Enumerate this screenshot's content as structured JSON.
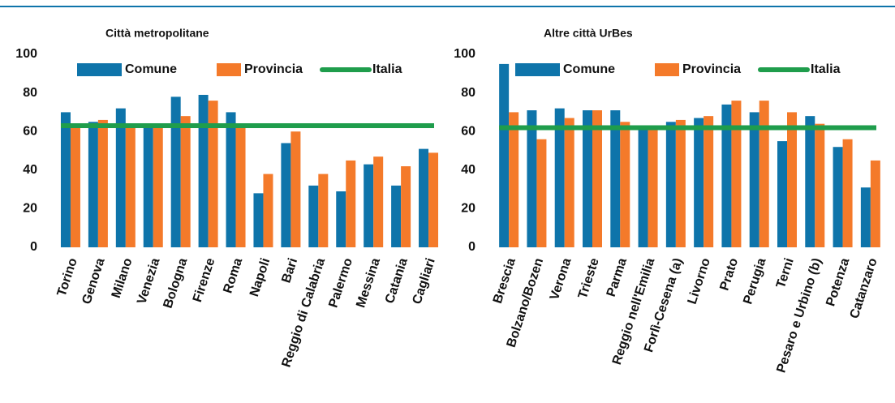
{
  "chart_data": [
    {
      "type": "bar",
      "title": "Città metropolitane",
      "categories": [
        "Torino",
        "Genova",
        "Milano",
        "Venezia",
        "Bologna",
        "Firenze",
        "Roma",
        "Napoli",
        "Bari",
        "Reggio di Calabria",
        "Palermo",
        "Messina",
        "Catania",
        "Cagliari"
      ],
      "series": [
        {
          "name": "Comune",
          "color": "#0e74aa",
          "values": [
            70,
            65,
            72,
            63,
            78,
            79,
            70,
            28,
            54,
            32,
            29,
            43,
            32,
            51
          ]
        },
        {
          "name": "Provincia",
          "color": "#f47a2a",
          "values": [
            64,
            66,
            64,
            62,
            68,
            76,
            63,
            38,
            60,
            38,
            45,
            47,
            42,
            49
          ]
        },
        {
          "name": "Italia",
          "type": "line",
          "color": "#1f9d4c",
          "values": [
            63,
            63,
            63,
            63,
            63,
            63,
            63,
            63,
            63,
            63,
            63,
            63,
            63,
            63
          ]
        }
      ],
      "ylim": [
        0,
        100
      ],
      "yticks": [
        0,
        20,
        40,
        60,
        80,
        100
      ]
    },
    {
      "type": "bar",
      "title": "Altre città UrBes",
      "categories": [
        "Brescia",
        "Bolzano/Bozen",
        "Verona",
        "Trieste",
        "Parma",
        "Reggio nell'Emilia",
        "Forlì-Cesena (a)",
        "Livorno",
        "Prato",
        "Perugia",
        "Terni",
        "Pesaro e Urbino (b)",
        "Potenza",
        "Catanzaro"
      ],
      "series": [
        {
          "name": "Comune",
          "color": "#0e74aa",
          "values": [
            95,
            71,
            72,
            71,
            71,
            63,
            65,
            67,
            74,
            70,
            55,
            68,
            52,
            31
          ]
        },
        {
          "name": "Provincia",
          "color": "#f47a2a",
          "values": [
            70,
            56,
            67,
            71,
            65,
            63,
            66,
            68,
            76,
            76,
            70,
            64,
            56,
            45
          ]
        },
        {
          "name": "Italia",
          "type": "line",
          "color": "#1f9d4c",
          "values": [
            62,
            62,
            62,
            62,
            62,
            62,
            62,
            62,
            62,
            62,
            62,
            62,
            62,
            62
          ]
        }
      ],
      "ylim": [
        0,
        100
      ],
      "yticks": [
        0,
        20,
        40,
        60,
        80,
        100
      ]
    }
  ]
}
